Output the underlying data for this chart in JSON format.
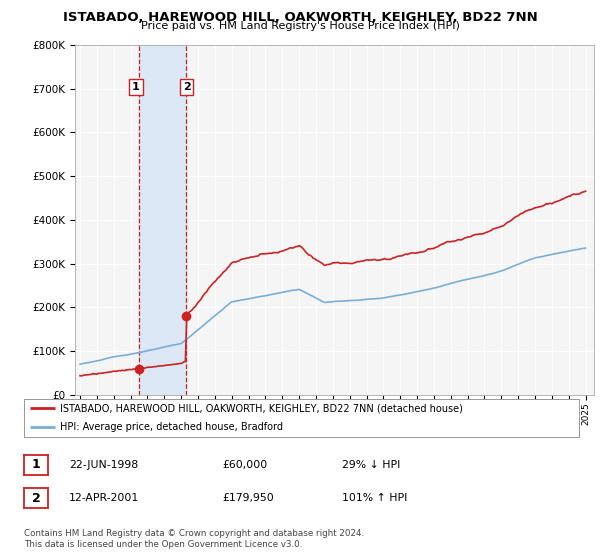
{
  "title": "ISTABADO, HAREWOOD HILL, OAKWORTH, KEIGHLEY, BD22 7NN",
  "subtitle": "Price paid vs. HM Land Registry's House Price Index (HPI)",
  "legend_line1": "ISTABADO, HAREWOOD HILL, OAKWORTH, KEIGHLEY, BD22 7NN (detached house)",
  "legend_line2": "HPI: Average price, detached house, Bradford",
  "sale1_date_label": "22-JUN-1998",
  "sale1_price_label": "£60,000",
  "sale1_hpi_label": "29% ↓ HPI",
  "sale2_date_label": "12-APR-2001",
  "sale2_price_label": "£179,950",
  "sale2_hpi_label": "101% ↑ HPI",
  "footer": "Contains HM Land Registry data © Crown copyright and database right 2024.\nThis data is licensed under the Open Government Licence v3.0.",
  "hpi_color": "#7aaed6",
  "price_color": "#cc2222",
  "shade_color": "#dce8f5",
  "sale1_date_num": 1998.47,
  "sale1_price": 60000,
  "sale2_date_num": 2001.27,
  "sale2_price": 179950,
  "ylim": [
    0,
    800000
  ],
  "xlim_start": 1994.7,
  "xlim_end": 2025.5,
  "ytick_values": [
    0,
    100000,
    200000,
    300000,
    400000,
    500000,
    600000,
    700000,
    800000
  ],
  "background_color": "#ffffff",
  "plot_bg_color": "#f5f5f5",
  "grid_color": "#ffffff"
}
